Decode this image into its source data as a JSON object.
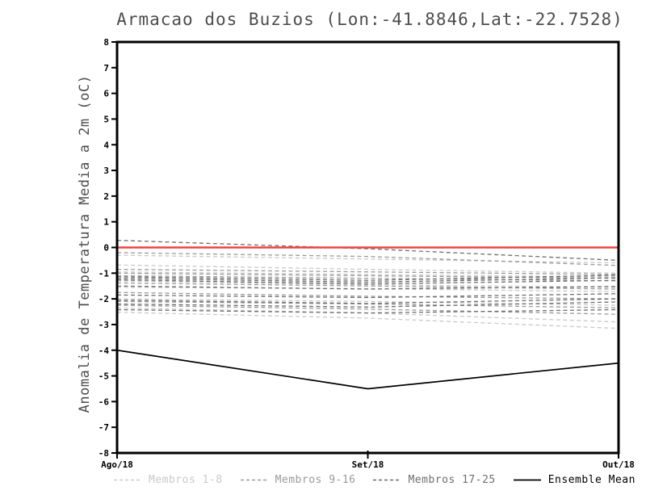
{
  "page": {
    "background": "#ffffff"
  },
  "chart_data": {
    "type": "line",
    "title": "Armacao dos Buzios (Lon:-41.8846,Lat:-22.7528)",
    "ylabel": "Anomalia de Temperatura Media a 2m (oC)",
    "xlabel": "",
    "categories": [
      "Ago/18",
      "Set/18",
      "Out/18"
    ],
    "ylim": [
      -8,
      8
    ],
    "ytick_step": 1,
    "grid": false,
    "legend_position": "bottom",
    "axis_color": "#000000",
    "tick_label_color": "#000000",
    "zero_line": {
      "value": 0,
      "color": "#ee4341"
    },
    "series": [
      {
        "name": "Membros 1-8",
        "style": "dashed",
        "color": "#c9c9c9",
        "members": [
          [
            -0.3,
            -0.45,
            -0.6
          ],
          [
            -0.68,
            -0.85,
            -1.0
          ],
          [
            -0.95,
            -1.05,
            -1.15
          ],
          [
            -1.3,
            -1.45,
            -1.55
          ],
          [
            -1.55,
            -1.6,
            -1.72
          ],
          [
            -2.0,
            -2.1,
            -2.25
          ],
          [
            -2.35,
            -2.55,
            -2.9
          ],
          [
            -2.52,
            -2.75,
            -3.15
          ]
        ]
      },
      {
        "name": "Membros 9-16",
        "style": "dashed",
        "color": "#9a9a9a",
        "members": [
          [
            -0.2,
            -0.35,
            -0.7
          ],
          [
            -0.85,
            -0.95,
            -1.05
          ],
          [
            -1.1,
            -1.2,
            -1.3
          ],
          [
            -1.38,
            -1.5,
            -1.62
          ],
          [
            -1.75,
            -1.9,
            -2.0
          ],
          [
            -2.1,
            -2.2,
            -2.35
          ],
          [
            -2.25,
            -2.4,
            -2.6
          ],
          [
            -1.0,
            -1.1,
            -1.2
          ]
        ]
      },
      {
        "name": "Membros 17-25",
        "style": "dashed",
        "color": "#6e6e6e",
        "members": [
          [
            0.28,
            -0.05,
            -0.5
          ],
          [
            -1.14,
            -1.28,
            -1.08
          ],
          [
            -1.2,
            -1.35,
            -1.18
          ],
          [
            -1.26,
            -1.42,
            -1.28
          ],
          [
            -1.5,
            -1.62,
            -1.52
          ],
          [
            -1.85,
            -1.95,
            -1.8
          ],
          [
            -2.05,
            -2.18,
            -2.0
          ],
          [
            -2.2,
            -2.32,
            -2.12
          ],
          [
            -2.42,
            -2.55,
            -2.42
          ]
        ]
      },
      {
        "name": "Ensemble Mean",
        "style": "solid",
        "color": "#000000",
        "members": [
          [
            -4.0,
            -5.5,
            -4.5
          ]
        ]
      }
    ]
  }
}
